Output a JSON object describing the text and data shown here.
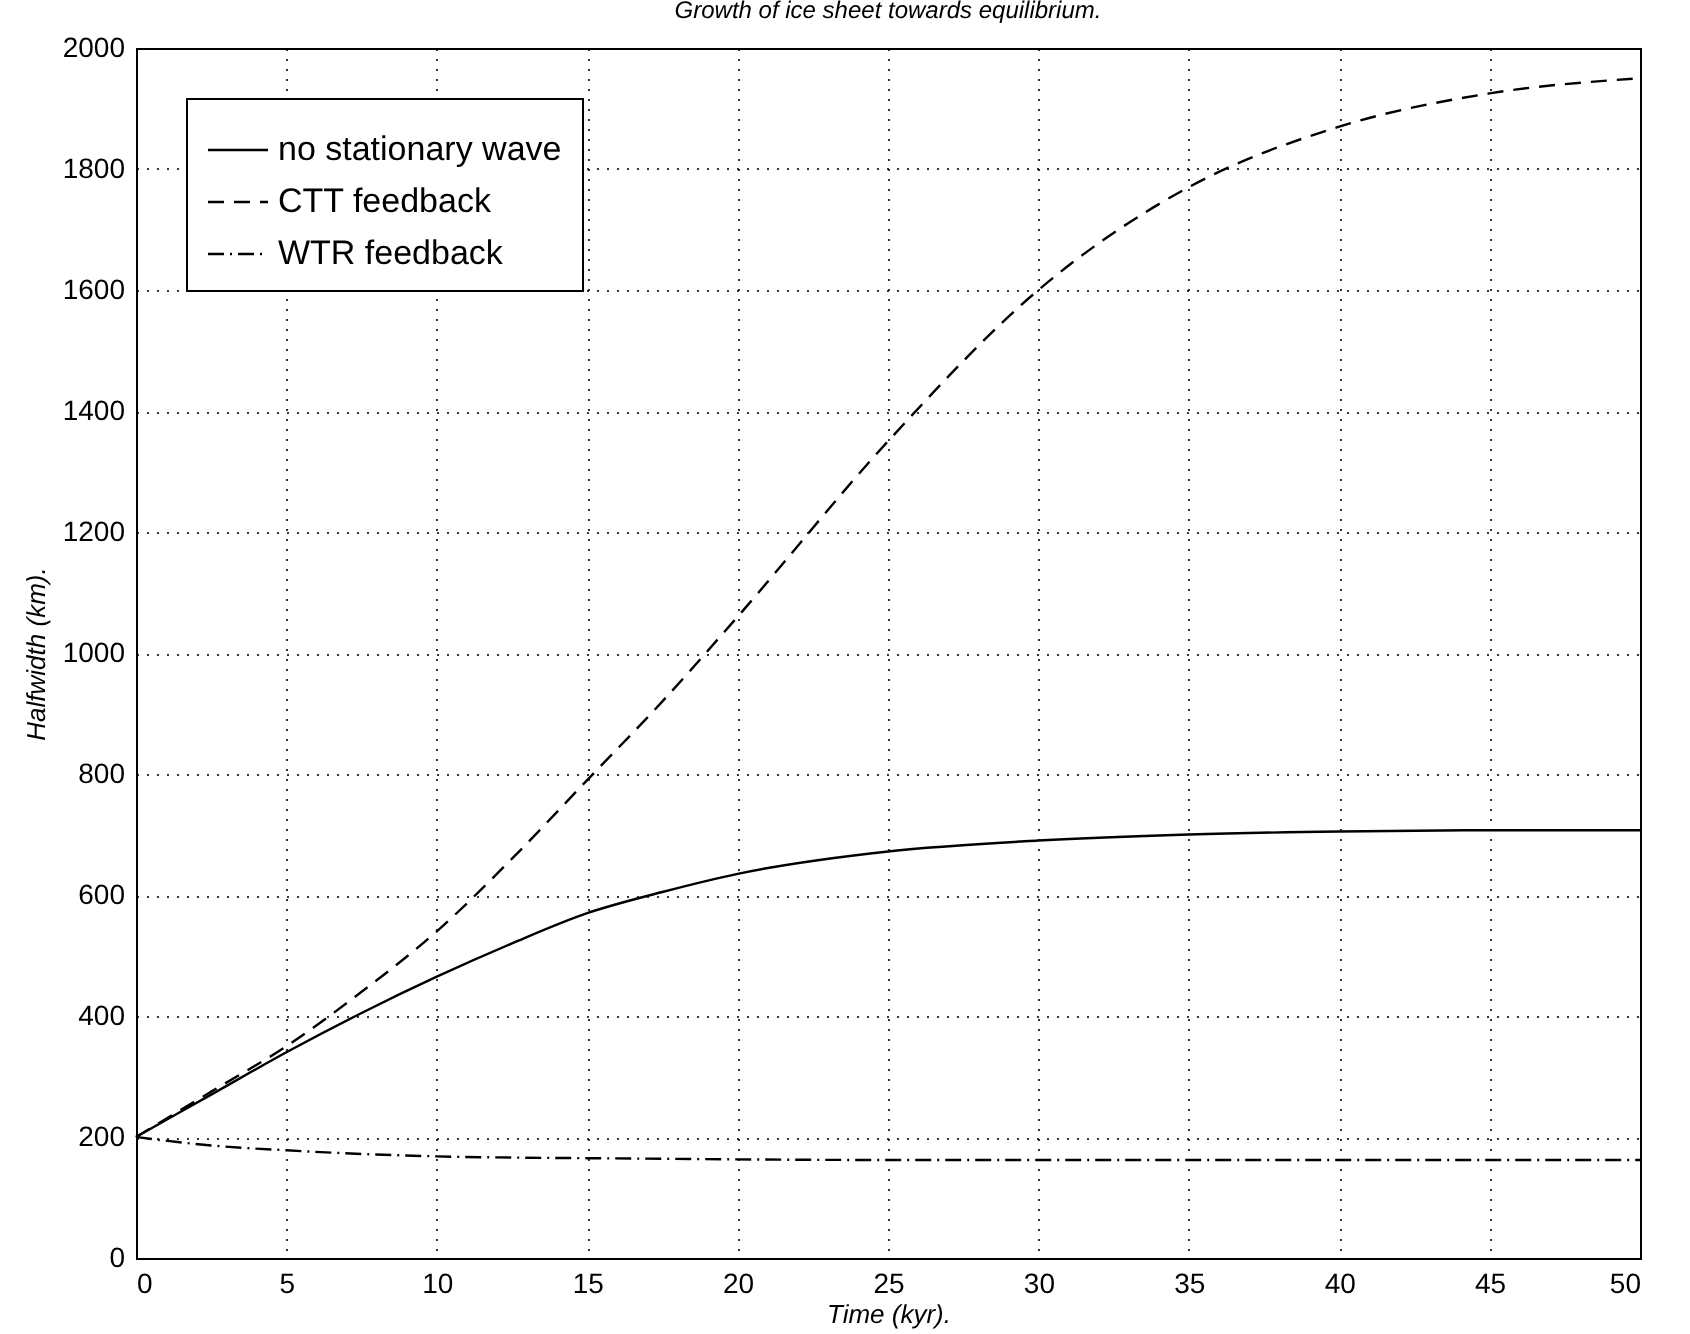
{
  "chart_data": {
    "type": "line",
    "title": "Growth of ice sheet towards equilibrium.",
    "xlabel": "Time (kyr).",
    "ylabel": "Halfwidth (km).",
    "x": [
      0,
      2.5,
      5,
      7.5,
      10,
      12.5,
      15,
      17.5,
      20,
      25,
      30,
      35,
      40,
      45,
      50
    ],
    "series": [
      {
        "name": "no stationary wave",
        "color": "#000000",
        "line_style": "solid",
        "values": [
          200,
          270,
          340,
          405,
          465,
          520,
          570,
          605,
          635,
          672,
          690,
          700,
          705,
          707,
          707
        ]
      },
      {
        "name": "CTT feedback",
        "color": "#000000",
        "line_style": "dashed",
        "values": [
          200,
          275,
          350,
          440,
          540,
          660,
          790,
          920,
          1060,
          1350,
          1600,
          1770,
          1870,
          1925,
          1950
        ]
      },
      {
        "name": "WTR feedback",
        "color": "#000000",
        "line_style": "dashdot",
        "values": [
          200,
          186,
          178,
          172,
          168,
          166,
          165,
          164,
          163,
          162,
          162,
          162,
          162,
          162,
          162
        ]
      }
    ],
    "xlim": [
      0,
      50
    ],
    "xticks": [
      0,
      5,
      10,
      15,
      20,
      25,
      30,
      35,
      40,
      45,
      50
    ],
    "ylim": [
      0,
      2000
    ],
    "yticks": [
      0,
      200,
      400,
      600,
      800,
      1000,
      1200,
      1400,
      1600,
      1800,
      2000
    ],
    "grid": true,
    "legend": "top left"
  }
}
